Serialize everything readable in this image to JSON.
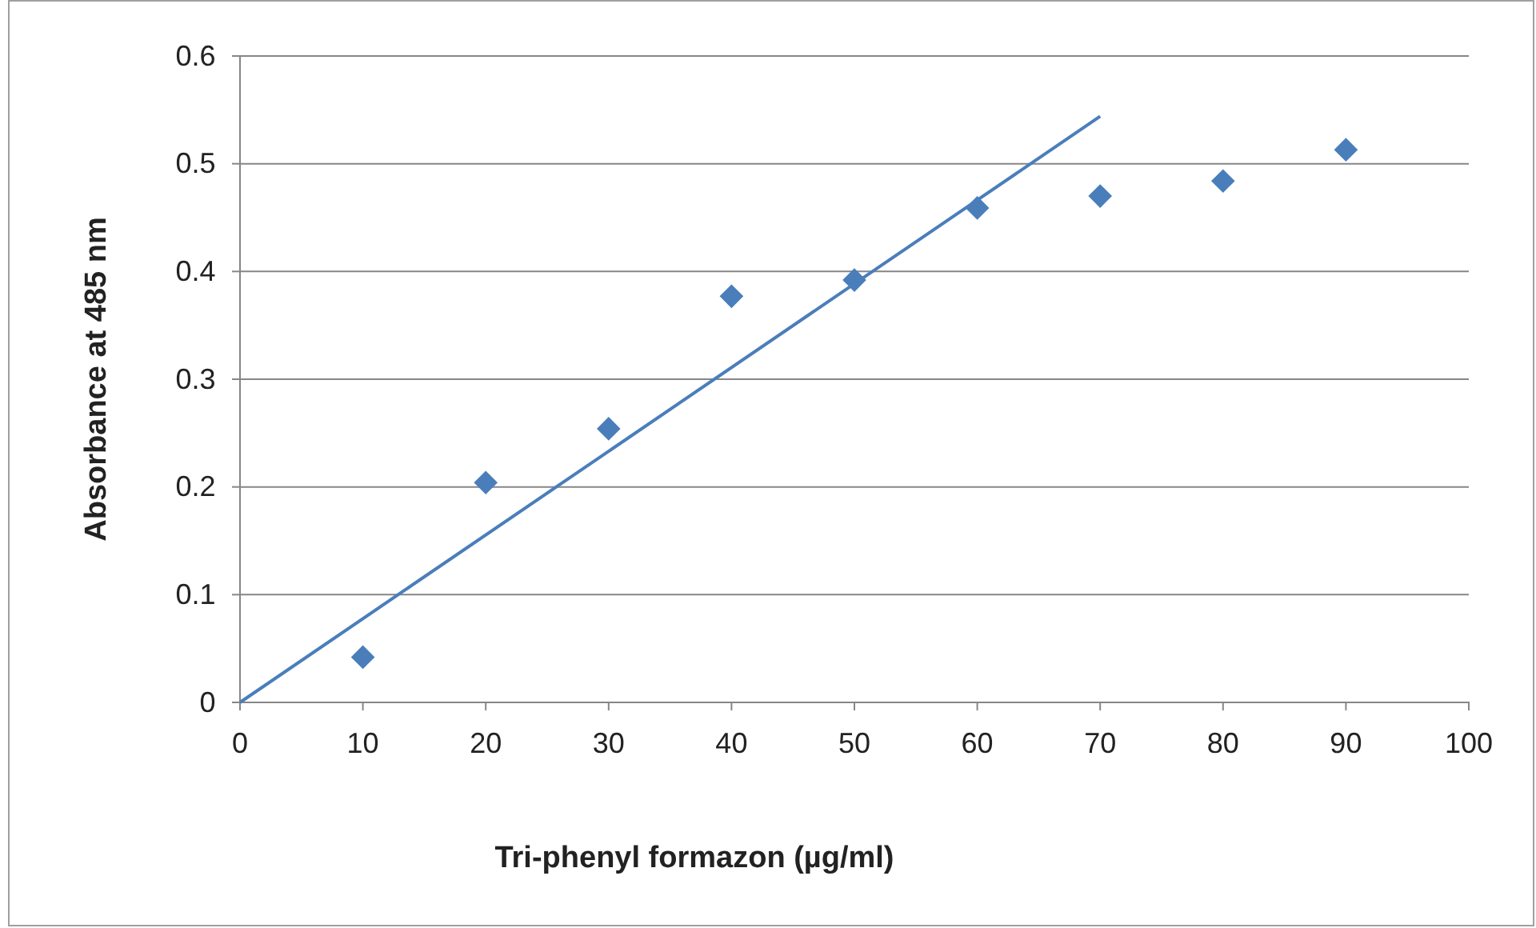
{
  "chart_data": {
    "type": "scatter",
    "xlabel": "Tri-phenyl formazon (µg/ml)",
    "ylabel": "Absorbance at 485 nm",
    "xlim": [
      0,
      100
    ],
    "xticks": [
      0,
      10,
      20,
      30,
      40,
      50,
      60,
      70,
      80,
      90,
      100
    ],
    "ylim": [
      0,
      0.6
    ],
    "yticks": [
      0,
      0.1,
      0.2,
      0.3,
      0.4,
      0.5,
      0.6
    ],
    "grid": "y",
    "marker": "diamond",
    "series": [
      {
        "color": "#4a7ebb",
        "x": [
          10,
          20,
          30,
          40,
          50,
          60,
          70,
          80,
          90
        ],
        "values": [
          0.042,
          0.204,
          0.254,
          0.377,
          0.392,
          0.459,
          0.47,
          0.484,
          0.513
        ]
      },
      {
        "type": "line",
        "color": "#4a7ebb",
        "marker": "none",
        "line_style": "solid",
        "x": [
          0,
          70
        ],
        "values": [
          0,
          0.544
        ]
      }
    ]
  }
}
